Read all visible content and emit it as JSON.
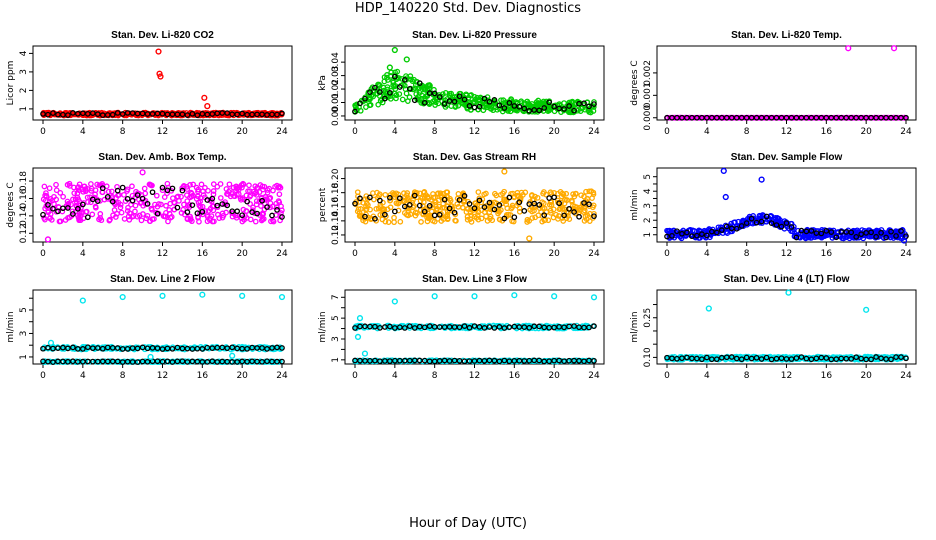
{
  "figure": {
    "title": "HDP_140220  Std. Dev. Diagnostics",
    "xlabel": "Hour of Day (UTC)"
  },
  "chart_data": [
    {
      "type": "scatter",
      "title": "Stan. Dev. Li-820 CO2",
      "ylabel": "Licor ppm",
      "xlim": [
        0,
        24
      ],
      "ylim": [
        0.4,
        4.4
      ],
      "xticks": [
        0,
        4,
        8,
        12,
        16,
        20,
        24
      ],
      "yticks": [
        1,
        2,
        3,
        4
      ],
      "ytick_labels": [
        "1",
        "2",
        "3",
        "4"
      ],
      "color": "#ff0000",
      "profile": {
        "kind": "flat",
        "base": 0.72,
        "spread": 0.08
      },
      "outliers": [
        {
          "x": 11.6,
          "y": 4.1
        },
        {
          "x": 11.7,
          "y": 2.9
        },
        {
          "x": 11.8,
          "y": 2.75
        },
        {
          "x": 16.2,
          "y": 1.6
        },
        {
          "x": 16.5,
          "y": 1.15
        }
      ]
    },
    {
      "type": "scatter",
      "title": "Stan. Dev. Li-820 Pressure",
      "ylabel": "kPa",
      "xlim": [
        0,
        24
      ],
      "ylim": [
        -0.003,
        0.052
      ],
      "xticks": [
        0,
        4,
        8,
        12,
        16,
        20,
        24
      ],
      "yticks": [
        0,
        0.01,
        0.02,
        0.03,
        0.04
      ],
      "ytick_labels": [
        "0.00",
        "0.01",
        "0.02",
        "0.03",
        "0.04"
      ],
      "color": "#00cc00",
      "profile": {
        "kind": "decay",
        "base": 0.006,
        "peak": 0.025,
        "peak_x": 4,
        "spread": 0.008
      },
      "outliers": [
        {
          "x": 4,
          "y": 0.049
        },
        {
          "x": 5.2,
          "y": 0.042
        },
        {
          "x": 3.5,
          "y": 0.036
        }
      ]
    },
    {
      "type": "scatter",
      "title": "Stan. Dev. Li-820 Temp.",
      "ylabel": "degrees C",
      "xlim": [
        0,
        24
      ],
      "ylim": [
        -0.0001,
        0.0032
      ],
      "xticks": [
        0,
        4,
        8,
        12,
        16,
        20,
        24
      ],
      "yticks": [
        0,
        0.001,
        0.002
      ],
      "ytick_labels": [
        "0.000",
        "0.001",
        "0.002"
      ],
      "color": "#ff00ff",
      "profile": {
        "kind": "flat",
        "base": 0.0,
        "spread": 0.0
      },
      "outliers": [
        {
          "x": 18.2,
          "y": 0.0031
        },
        {
          "x": 22.8,
          "y": 0.0031
        }
      ]
    },
    {
      "type": "scatter",
      "title": "Stan. Dev. Amb. Box Temp.",
      "ylabel": "degrees C",
      "xlim": [
        0,
        24
      ],
      "ylim": [
        0.11,
        0.195
      ],
      "xticks": [
        0,
        4,
        8,
        12,
        16,
        20,
        24
      ],
      "yticks": [
        0.12,
        0.14,
        0.16,
        0.18
      ],
      "ytick_labels": [
        "0.12",
        "0.14",
        "0.16",
        "0.18"
      ],
      "color": "#ff00ff",
      "profile": {
        "kind": "flat",
        "base": 0.155,
        "spread": 0.022
      },
      "outliers": [
        {
          "x": 10,
          "y": 0.19
        },
        {
          "x": 0.5,
          "y": 0.113
        }
      ]
    },
    {
      "type": "scatter",
      "title": "Stan. Dev. Gas Stream RH",
      "ylabel": "percent",
      "xlim": [
        0,
        24
      ],
      "ylim": [
        0.11,
        0.215
      ],
      "xticks": [
        0,
        4,
        8,
        12,
        16,
        20,
        24
      ],
      "yticks": [
        0.12,
        0.14,
        0.16,
        0.18,
        0.2
      ],
      "ytick_labels": [
        "0.12",
        "0.14",
        "0.16",
        "0.18",
        "0.20"
      ],
      "color": "#ffaa00",
      "profile": {
        "kind": "flat",
        "base": 0.16,
        "spread": 0.022
      },
      "outliers": [
        {
          "x": 15,
          "y": 0.21
        },
        {
          "x": 17.5,
          "y": 0.115
        }
      ]
    },
    {
      "type": "scatter",
      "title": "Stan. Dev. Sample Flow",
      "ylabel": "ml/min",
      "xlim": [
        0,
        24
      ],
      "ylim": [
        0.5,
        5.6
      ],
      "xticks": [
        0,
        4,
        8,
        12,
        16,
        20,
        24
      ],
      "yticks": [
        1,
        1.5,
        2,
        2.5,
        3,
        3.5,
        4,
        4.5,
        5
      ],
      "ytick_labels": [
        "1",
        "",
        "2",
        "",
        "3",
        "",
        "4",
        "",
        "5"
      ],
      "color": "#0000ff",
      "profile": {
        "kind": "bump",
        "base": 1.05,
        "peak": 2.1,
        "peak_x": 9.5,
        "width": 3.2,
        "end": 12.8,
        "spread": 0.3
      },
      "outliers": [
        {
          "x": 5.7,
          "y": 5.4
        },
        {
          "x": 9.5,
          "y": 4.8
        },
        {
          "x": 5.9,
          "y": 3.6
        },
        {
          "x": 23.8,
          "y": 0.6
        }
      ]
    },
    {
      "type": "scatter",
      "title": "Stan. Dev. Line 2 Flow",
      "ylabel": "ml/min",
      "xlim": [
        0,
        24
      ],
      "ylim": [
        0.4,
        6.7
      ],
      "xticks": [
        0,
        4,
        8,
        12,
        16,
        20,
        24
      ],
      "yticks": [
        1,
        2,
        3,
        4,
        5,
        6
      ],
      "ytick_labels": [
        "1",
        "",
        "3",
        "",
        "5",
        ""
      ],
      "color": "#00e5ee",
      "profile": {
        "kind": "twoband",
        "base": 0.6,
        "band": 1.75,
        "spread": 0.08
      },
      "outliers": [
        {
          "x": 4,
          "y": 5.8
        },
        {
          "x": 8,
          "y": 6.1
        },
        {
          "x": 12,
          "y": 6.2
        },
        {
          "x": 16,
          "y": 6.3
        },
        {
          "x": 20,
          "y": 6.2
        },
        {
          "x": 24,
          "y": 6.1
        },
        {
          "x": 0.8,
          "y": 2.2
        },
        {
          "x": 10.8,
          "y": 1.0
        },
        {
          "x": 19,
          "y": 1.1
        }
      ]
    },
    {
      "type": "scatter",
      "title": "Stan. Dev. Line 3 Flow",
      "ylabel": "ml/min",
      "xlim": [
        0,
        24
      ],
      "ylim": [
        0.6,
        7.7
      ],
      "xticks": [
        0,
        4,
        8,
        12,
        16,
        20,
        24
      ],
      "yticks": [
        1,
        2,
        3,
        4,
        5,
        6,
        7
      ],
      "ytick_labels": [
        "1",
        "",
        "3",
        "",
        "5",
        "",
        "7"
      ],
      "color": "#00e5ee",
      "profile": {
        "kind": "twoband",
        "base": 0.9,
        "band": 4.15,
        "spread": 0.1
      },
      "outliers": [
        {
          "x": 4,
          "y": 6.6
        },
        {
          "x": 8,
          "y": 7.1
        },
        {
          "x": 12,
          "y": 7.1
        },
        {
          "x": 16,
          "y": 7.2
        },
        {
          "x": 20,
          "y": 7.1
        },
        {
          "x": 24,
          "y": 7.0
        },
        {
          "x": 0.3,
          "y": 3.2
        },
        {
          "x": 0.5,
          "y": 5.0
        },
        {
          "x": 1.0,
          "y": 1.6
        }
      ]
    },
    {
      "type": "scatter",
      "title": "Stan. Dev. Line 4 (LT) Flow",
      "ylabel": "ml/min",
      "xlim": [
        0,
        24
      ],
      "ylim": [
        0.075,
        0.355
      ],
      "xticks": [
        0,
        4,
        8,
        12,
        16,
        20,
        24
      ],
      "yticks": [
        0.1,
        0.15,
        0.2,
        0.25,
        0.3
      ],
      "ytick_labels": [
        "0.10",
        "",
        "",
        "0.25",
        ""
      ],
      "color": "#00e5ee",
      "profile": {
        "kind": "flat",
        "base": 0.097,
        "spread": 0.006
      },
      "outliers": [
        {
          "x": 4.2,
          "y": 0.285
        },
        {
          "x": 12.2,
          "y": 0.345
        },
        {
          "x": 20,
          "y": 0.28
        }
      ]
    }
  ]
}
